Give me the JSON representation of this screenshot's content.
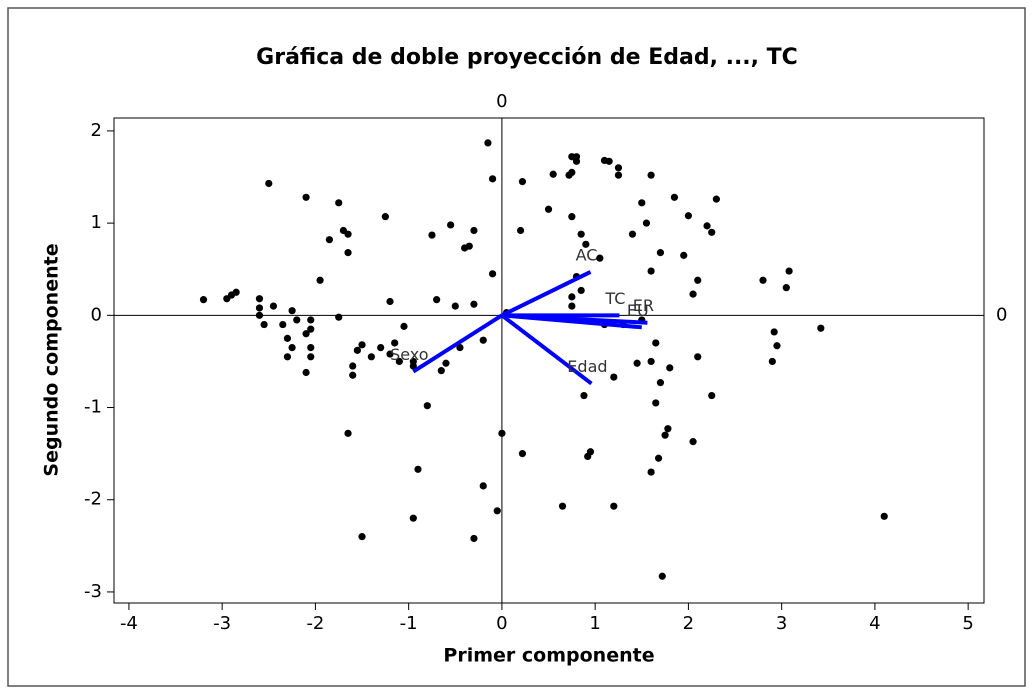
{
  "chart_data": {
    "type": "biplot",
    "title": "Gráfica de doble proyección de Edad, ..., TC",
    "xlabel": "Primer componente",
    "ylabel": "Segundo componente",
    "xlim": [
      -4.16,
      5.17
    ],
    "ylim": [
      -3.12,
      2.14
    ],
    "xticks": [
      -4,
      -3,
      -2,
      -1,
      0,
      1,
      2,
      3,
      4,
      5
    ],
    "yticks": [
      -3,
      -2,
      -1,
      0,
      1,
      2
    ],
    "reference_x": 0,
    "reference_y": 0,
    "point_color": "#000000",
    "vector_color": "#0000ff",
    "x": [
      -3.2,
      -2.95,
      -2.9,
      -2.85,
      -2.5,
      -2.6,
      -2.6,
      -2.6,
      -2.55,
      -2.45,
      -2.35,
      -2.3,
      -2.3,
      -2.25,
      -2.2,
      -2.25,
      -2.1,
      -2.05,
      -2.05,
      -2.05,
      -2.1,
      -2.05,
      -2.1,
      -1.95,
      -1.85,
      -1.75,
      -1.75,
      -1.7,
      -1.65,
      -1.65,
      -1.65,
      -1.6,
      -1.6,
      -1.55,
      -1.5,
      -1.5,
      -1.4,
      -1.3,
      -1.25,
      -1.2,
      -1.2,
      -1.15,
      -1.1,
      -1.05,
      -0.95,
      -0.95,
      -0.9,
      -0.95,
      -0.8,
      -0.75,
      -0.7,
      -0.65,
      -0.6,
      -0.55,
      -0.5,
      -0.45,
      -0.4,
      -0.35,
      -0.3,
      -0.3,
      -0.3,
      -0.2,
      -0.2,
      -0.15,
      -0.1,
      -0.1,
      -0.05,
      0,
      0.05,
      0.2,
      0.22,
      0.22,
      0.5,
      0.55,
      0.65,
      0.72,
      0.75,
      0.8,
      0.8,
      0.75,
      0.75,
      0.8,
      0.75,
      0.75,
      0.85,
      0.85,
      0.9,
      0.88,
      0.92,
      0.95,
      1.05,
      1.1,
      1.1,
      1.15,
      1.2,
      1.2,
      1.25,
      1.25,
      1.4,
      1.45,
      1.5,
      1.55,
      1.6,
      1.6,
      1.6,
      1.6,
      1.65,
      1.65,
      1.68,
      1.7,
      1.7,
      1.72,
      1.75,
      1.78,
      1.8,
      1.85,
      1.95,
      2.0,
      2.05,
      2.05,
      2.1,
      2.1,
      2.2,
      2.25,
      2.25,
      2.3,
      2.8,
      2.9,
      2.92,
      2.95,
      3.08,
      3.05,
      3.42,
      4.1,
      1.5,
      1.3
    ],
    "y": [
      0.17,
      0.18,
      0.22,
      0.25,
      1.43,
      0.18,
      0.08,
      0.0,
      -0.1,
      0.1,
      -0.1,
      -0.25,
      -0.45,
      0.05,
      -0.05,
      -0.35,
      -0.2,
      -0.15,
      -0.35,
      -0.45,
      -0.62,
      -0.05,
      1.28,
      0.38,
      0.82,
      1.22,
      -0.02,
      0.92,
      0.88,
      0.68,
      -1.28,
      -0.55,
      -0.65,
      -0.38,
      -0.32,
      -2.4,
      -0.45,
      -0.35,
      1.07,
      0.15,
      -0.42,
      -0.3,
      -0.5,
      -0.12,
      -0.5,
      -0.55,
      -1.67,
      -2.2,
      -0.98,
      0.87,
      0.17,
      -0.6,
      -0.52,
      0.98,
      0.1,
      -0.35,
      0.73,
      0.75,
      0.92,
      -2.42,
      0.12,
      -0.27,
      -1.85,
      1.87,
      1.48,
      0.45,
      -2.12,
      -1.28,
      0.03,
      0.92,
      1.45,
      -1.5,
      1.15,
      1.53,
      -2.07,
      1.52,
      1.72,
      1.72,
      1.67,
      1.55,
      1.07,
      0.42,
      0.1,
      0.2,
      0.27,
      0.88,
      0.77,
      -0.87,
      -1.53,
      -1.48,
      0.62,
      -0.1,
      1.68,
      1.67,
      -2.07,
      -0.67,
      1.6,
      1.52,
      0.88,
      -0.52,
      1.22,
      1.0,
      1.52,
      0.48,
      -0.5,
      -1.7,
      -0.3,
      -0.95,
      -1.55,
      0.68,
      -0.73,
      -2.83,
      -1.3,
      -1.23,
      -0.57,
      1.28,
      0.65,
      1.08,
      0.23,
      -1.37,
      0.38,
      -0.45,
      0.97,
      0.9,
      -0.87,
      1.26,
      0.38,
      -0.5,
      -0.18,
      -0.33,
      0.48,
      0.3,
      -0.14,
      -2.18,
      -0.05,
      -0.1
    ],
    "vectors": [
      {
        "name": "AC",
        "x": 0.95,
        "y": 0.47
      },
      {
        "name": "TC",
        "x": 1.26,
        "y": 0.0
      },
      {
        "name": "ER",
        "x": 1.56,
        "y": -0.08
      },
      {
        "name": "EU",
        "x": 1.5,
        "y": -0.13
      },
      {
        "name": "Edad",
        "x": 0.96,
        "y": -0.74
      },
      {
        "name": "Sexo",
        "x": -0.95,
        "y": -0.61
      }
    ]
  }
}
